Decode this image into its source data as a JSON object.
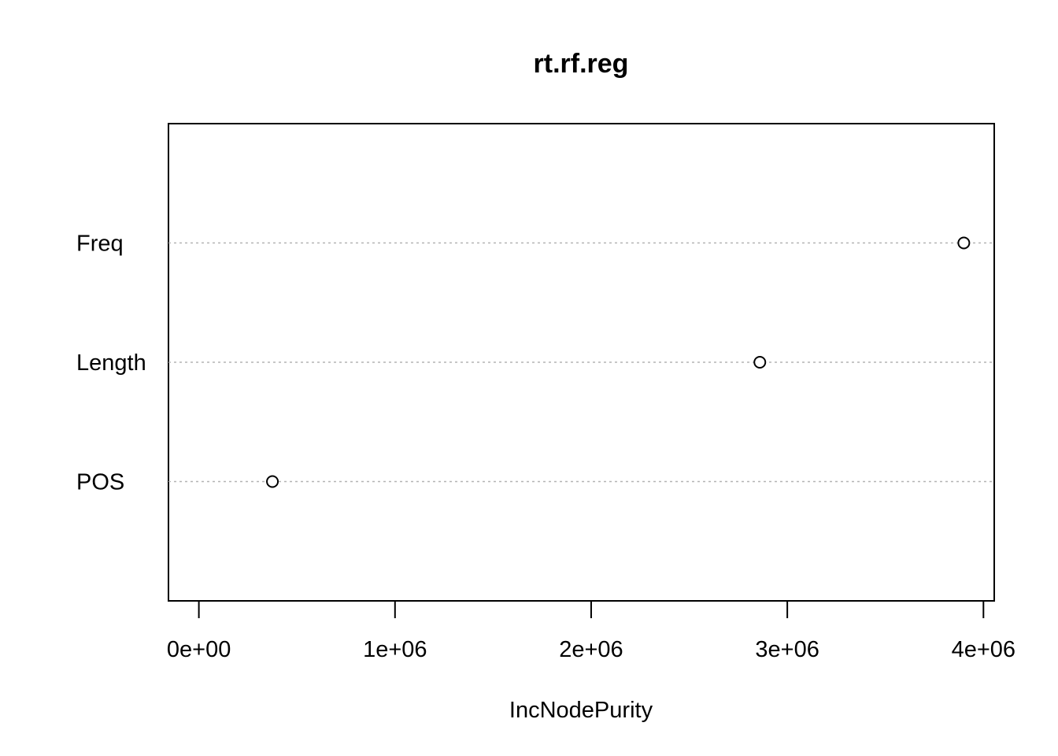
{
  "chart_data": {
    "type": "scatter",
    "title": "rt.rf.reg",
    "xlabel": "IncNodePurity",
    "ylabel": "",
    "categories": [
      "POS",
      "Length",
      "Freq"
    ],
    "values": [
      375000,
      2860000,
      3900000
    ],
    "xlim": [
      -155000,
      4055000
    ],
    "x_ticks": [
      0,
      1000000,
      2000000,
      3000000,
      4000000
    ],
    "x_tick_labels": [
      "0e+00",
      "1e+06",
      "2e+06",
      "3e+06",
      "4e+06"
    ],
    "grid": "dotted horizontal lines per category",
    "marker": "open circle"
  }
}
